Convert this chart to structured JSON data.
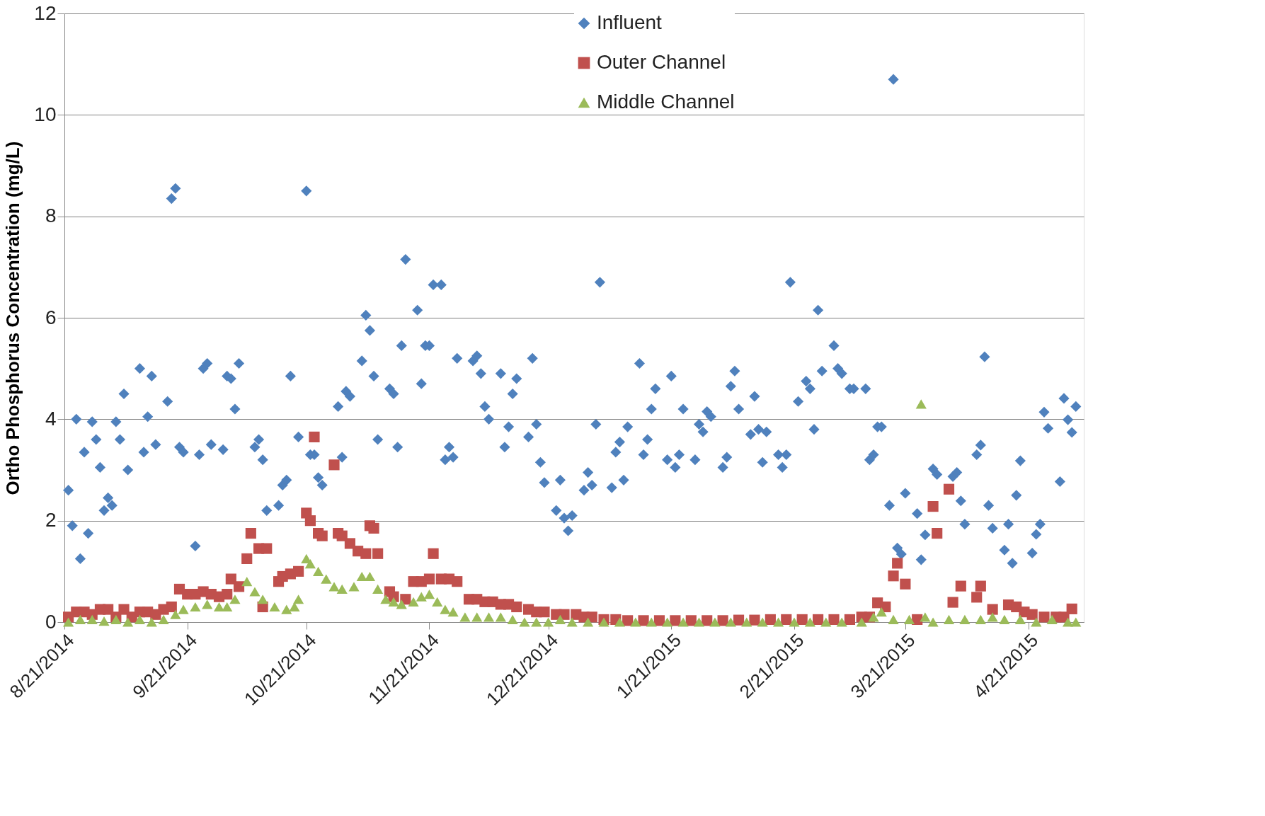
{
  "chart_data": {
    "type": "scatter",
    "ylabel": "Ortho Phosphorus Concentration (mg/L)",
    "xlim": [
      "2014-08-21",
      "2015-05-05"
    ],
    "ylim": [
      0,
      12
    ],
    "yticks": [
      0,
      2,
      4,
      6,
      8,
      10,
      12
    ],
    "xticks": [
      {
        "value": "2014-08-21",
        "label": "8/21/2014"
      },
      {
        "value": "2014-09-21",
        "label": "9/21/2014"
      },
      {
        "value": "2014-10-21",
        "label": "10/21/2014"
      },
      {
        "value": "2014-11-21",
        "label": "11/21/2014"
      },
      {
        "value": "2014-12-21",
        "label": "12/21/2014"
      },
      {
        "value": "2015-01-21",
        "label": "1/21/2015"
      },
      {
        "value": "2015-02-21",
        "label": "2/21/2015"
      },
      {
        "value": "2015-03-21",
        "label": "3/21/2015"
      },
      {
        "value": "2015-04-21",
        "label": "4/21/2015"
      }
    ],
    "grid": "y",
    "legend": "top",
    "series": [
      {
        "name": "Influent",
        "color": "#4f81bd",
        "marker": "diamond",
        "x": [
          "2014-08-22",
          "2014-08-23",
          "2014-08-24",
          "2014-08-25",
          "2014-08-26",
          "2014-08-27",
          "2014-08-28",
          "2014-08-29",
          "2014-08-30",
          "2014-08-31",
          "2014-09-01",
          "2014-09-02",
          "2014-09-03",
          "2014-09-04",
          "2014-09-05",
          "2014-09-06",
          "2014-09-09",
          "2014-09-10",
          "2014-09-11",
          "2014-09-12",
          "2014-09-13",
          "2014-09-16",
          "2014-09-17",
          "2014-09-18",
          "2014-09-19",
          "2014-09-20",
          "2014-09-23",
          "2014-09-24",
          "2014-09-25",
          "2014-09-26",
          "2014-09-27",
          "2014-09-30",
          "2014-10-01",
          "2014-10-02",
          "2014-10-03",
          "2014-10-04",
          "2014-10-08",
          "2014-10-09",
          "2014-10-10",
          "2014-10-11",
          "2014-10-14",
          "2014-10-15",
          "2014-10-16",
          "2014-10-17",
          "2014-10-19",
          "2014-10-21",
          "2014-10-22",
          "2014-10-23",
          "2014-10-24",
          "2014-10-25",
          "2014-10-29",
          "2014-10-30",
          "2014-10-31",
          "2014-11-01",
          "2014-11-04",
          "2014-11-05",
          "2014-11-06",
          "2014-11-07",
          "2014-11-08",
          "2014-11-11",
          "2014-11-12",
          "2014-11-13",
          "2014-11-14",
          "2014-11-15",
          "2014-11-18",
          "2014-11-19",
          "2014-11-20",
          "2014-11-21",
          "2014-11-22",
          "2014-11-24",
          "2014-11-25",
          "2014-11-26",
          "2014-11-27",
          "2014-11-28",
          "2014-12-02",
          "2014-12-03",
          "2014-12-04",
          "2014-12-05",
          "2014-12-06",
          "2014-12-09",
          "2014-12-10",
          "2014-12-11",
          "2014-12-12",
          "2014-12-13",
          "2014-12-16",
          "2014-12-17",
          "2014-12-18",
          "2014-12-19",
          "2014-12-20",
          "2014-12-23",
          "2014-12-24",
          "2014-12-25",
          "2014-12-26",
          "2014-12-27",
          "2014-12-30",
          "2014-12-31",
          "2015-01-01",
          "2015-01-02",
          "2015-01-03",
          "2015-01-06",
          "2015-01-07",
          "2015-01-08",
          "2015-01-09",
          "2015-01-10",
          "2015-01-13",
          "2015-01-14",
          "2015-01-15",
          "2015-01-16",
          "2015-01-17",
          "2015-01-20",
          "2015-01-21",
          "2015-01-22",
          "2015-01-23",
          "2015-01-24",
          "2015-01-27",
          "2015-01-28",
          "2015-01-29",
          "2015-01-30",
          "2015-01-31",
          "2015-02-03",
          "2015-02-04",
          "2015-02-05",
          "2015-02-06",
          "2015-02-07",
          "2015-02-10",
          "2015-02-11",
          "2015-02-12",
          "2015-02-13",
          "2015-02-14",
          "2015-02-17",
          "2015-02-18",
          "2015-02-19",
          "2015-02-20",
          "2015-02-22",
          "2015-02-24",
          "2015-02-25",
          "2015-02-26",
          "2015-02-27",
          "2015-02-28",
          "2015-03-03",
          "2015-03-04",
          "2015-03-05",
          "2015-03-07",
          "2015-03-08",
          "2015-03-11",
          "2015-03-12",
          "2015-03-13",
          "2015-03-14",
          "2015-03-15",
          "2015-03-17",
          "2015-03-18",
          "2015-03-19",
          "2015-03-20",
          "2015-03-21",
          "2015-03-24",
          "2015-03-25",
          "2015-03-26",
          "2015-03-28",
          "2015-03-29",
          "2015-04-02",
          "2015-04-03",
          "2015-04-04",
          "2015-04-05",
          "2015-04-08",
          "2015-04-09",
          "2015-04-10",
          "2015-04-11",
          "2015-04-12",
          "2015-04-15",
          "2015-04-16",
          "2015-04-17",
          "2015-04-18",
          "2015-04-19",
          "2015-04-22",
          "2015-04-23",
          "2015-04-24",
          "2015-04-25",
          "2015-04-26",
          "2015-04-29",
          "2015-04-30",
          "2015-05-01",
          "2015-05-02",
          "2015-05-03"
        ],
        "values": [
          2.6,
          1.9,
          4.0,
          1.25,
          3.35,
          1.75,
          3.95,
          3.6,
          3.05,
          2.2,
          2.45,
          2.3,
          3.95,
          3.6,
          4.5,
          3.0,
          5.0,
          3.35,
          4.05,
          4.85,
          3.5,
          4.35,
          8.35,
          8.55,
          3.45,
          3.35,
          1.5,
          3.3,
          5.0,
          5.1,
          3.5,
          3.4,
          4.85,
          4.8,
          4.2,
          5.1,
          3.45,
          3.6,
          3.2,
          2.2,
          2.3,
          2.7,
          2.8,
          4.85,
          3.65,
          8.5,
          3.3,
          3.3,
          2.85,
          2.7,
          4.25,
          3.25,
          4.55,
          4.45,
          5.15,
          6.05,
          5.75,
          4.85,
          3.6,
          4.6,
          4.5,
          3.45,
          5.45,
          7.15,
          6.15,
          4.7,
          5.45,
          5.45,
          6.65,
          6.65,
          3.2,
          3.45,
          3.25,
          5.2,
          5.15,
          5.25,
          4.9,
          4.25,
          4.0,
          4.9,
          3.45,
          3.85,
          4.5,
          4.8,
          3.65,
          5.2,
          3.9,
          3.15,
          2.75,
          2.2,
          2.8,
          2.05,
          1.8,
          2.1,
          2.6,
          2.95,
          2.7,
          3.9,
          6.7,
          2.65,
          3.35,
          3.55,
          2.8,
          3.85,
          5.1,
          3.3,
          3.6,
          4.2,
          4.6,
          3.2,
          4.85,
          3.05,
          3.3,
          4.2,
          3.2,
          3.9,
          3.75,
          4.15,
          4.05,
          3.05,
          3.25,
          4.65,
          4.95,
          4.2,
          3.7,
          4.45,
          3.8,
          3.15,
          3.75,
          3.3,
          3.05,
          3.3,
          6.7,
          4.35,
          4.75,
          4.6,
          3.8,
          6.15,
          4.95,
          5.45,
          5.0,
          4.9,
          4.6,
          4.6,
          4.6,
          3.2,
          3.3,
          3.85,
          3.85,
          2.3,
          10.7,
          1.46,
          1.34,
          2.54,
          2.14,
          1.23,
          1.72,
          3.02,
          2.91,
          2.87,
          2.95,
          2.39,
          1.93,
          3.3,
          3.49,
          5.23,
          2.3,
          1.85,
          1.42,
          1.93,
          1.16,
          2.5,
          3.18,
          1.36,
          1.73,
          1.93,
          4.14,
          3.82,
          2.77,
          4.41,
          3.99,
          3.74,
          4.25
        ]
      },
      {
        "name": "Outer Channel",
        "color": "#c0504d",
        "marker": "square",
        "x": [
          "2014-08-22",
          "2014-08-24",
          "2014-08-26",
          "2014-08-28",
          "2014-08-30",
          "2014-09-01",
          "2014-09-03",
          "2014-09-05",
          "2014-09-07",
          "2014-09-09",
          "2014-09-11",
          "2014-09-13",
          "2014-09-15",
          "2014-09-17",
          "2014-09-19",
          "2014-09-21",
          "2014-09-23",
          "2014-09-25",
          "2014-09-27",
          "2014-09-29",
          "2014-10-01",
          "2014-10-02",
          "2014-10-04",
          "2014-10-06",
          "2014-10-07",
          "2014-10-09",
          "2014-10-10",
          "2014-10-11",
          "2014-10-14",
          "2014-10-15",
          "2014-10-17",
          "2014-10-19",
          "2014-10-21",
          "2014-10-22",
          "2014-10-23",
          "2014-10-24",
          "2014-10-25",
          "2014-10-28",
          "2014-10-29",
          "2014-10-30",
          "2014-11-01",
          "2014-11-03",
          "2014-11-05",
          "2014-11-06",
          "2014-11-07",
          "2014-11-08",
          "2014-11-11",
          "2014-11-12",
          "2014-11-15",
          "2014-11-17",
          "2014-11-19",
          "2014-11-21",
          "2014-11-22",
          "2014-11-24",
          "2014-11-26",
          "2014-11-28",
          "2014-12-01",
          "2014-12-03",
          "2014-12-05",
          "2014-12-07",
          "2014-12-09",
          "2014-12-11",
          "2014-12-13",
          "2014-12-16",
          "2014-12-18",
          "2014-12-20",
          "2014-12-23",
          "2014-12-25",
          "2014-12-28",
          "2014-12-30",
          "2015-01-01",
          "2015-01-04",
          "2015-01-07",
          "2015-01-10",
          "2015-01-14",
          "2015-01-18",
          "2015-01-22",
          "2015-01-26",
          "2015-01-30",
          "2015-02-03",
          "2015-02-07",
          "2015-02-11",
          "2015-02-15",
          "2015-02-19",
          "2015-02-23",
          "2015-02-27",
          "2015-03-03",
          "2015-03-07",
          "2015-03-10",
          "2015-03-12",
          "2015-03-14",
          "2015-03-16",
          "2015-03-18",
          "2015-03-19",
          "2015-03-21",
          "2015-03-24",
          "2015-03-28",
          "2015-03-29",
          "2015-04-01",
          "2015-04-02",
          "2015-04-04",
          "2015-04-08",
          "2015-04-09",
          "2015-04-12",
          "2015-04-16",
          "2015-04-18",
          "2015-04-20",
          "2015-04-22",
          "2015-04-25",
          "2015-04-28",
          "2015-04-30",
          "2015-05-02"
        ],
        "values": [
          0.1,
          0.2,
          0.2,
          0.15,
          0.25,
          0.25,
          0.1,
          0.25,
          0.1,
          0.2,
          0.2,
          0.15,
          0.25,
          0.3,
          0.65,
          0.55,
          0.55,
          0.6,
          0.55,
          0.5,
          0.55,
          0.85,
          0.7,
          1.25,
          1.75,
          1.45,
          0.3,
          1.45,
          0.8,
          0.9,
          0.95,
          1.0,
          2.15,
          2.0,
          3.65,
          1.75,
          1.7,
          3.1,
          1.75,
          1.7,
          1.55,
          1.4,
          1.35,
          1.9,
          1.85,
          1.35,
          0.6,
          0.5,
          0.45,
          0.8,
          0.8,
          0.85,
          1.35,
          0.85,
          0.85,
          0.8,
          0.45,
          0.45,
          0.4,
          0.4,
          0.35,
          0.35,
          0.3,
          0.25,
          0.2,
          0.2,
          0.15,
          0.15,
          0.15,
          0.1,
          0.1,
          0.05,
          0.05,
          0.03,
          0.03,
          0.03,
          0.03,
          0.03,
          0.03,
          0.03,
          0.04,
          0.04,
          0.05,
          0.05,
          0.05,
          0.05,
          0.05,
          0.05,
          0.1,
          0.1,
          0.38,
          0.3,
          0.91,
          1.16,
          0.75,
          0.05,
          2.28,
          1.75,
          2.62,
          0.39,
          0.71,
          0.49,
          0.71,
          0.25,
          0.34,
          0.3,
          0.2,
          0.15,
          0.1,
          0.1,
          0.1,
          0.26
        ]
      },
      {
        "name": "Middle Channel",
        "color": "#9bbb59",
        "marker": "triangle",
        "x": [
          "2014-08-22",
          "2014-08-25",
          "2014-08-28",
          "2014-08-31",
          "2014-09-03",
          "2014-09-06",
          "2014-09-09",
          "2014-09-12",
          "2014-09-15",
          "2014-09-18",
          "2014-09-20",
          "2014-09-23",
          "2014-09-26",
          "2014-09-29",
          "2014-10-01",
          "2014-10-03",
          "2014-10-06",
          "2014-10-08",
          "2014-10-10",
          "2014-10-13",
          "2014-10-16",
          "2014-10-18",
          "2014-10-19",
          "2014-10-21",
          "2014-10-22",
          "2014-10-24",
          "2014-10-26",
          "2014-10-28",
          "2014-10-30",
          "2014-11-02",
          "2014-11-04",
          "2014-11-06",
          "2014-11-08",
          "2014-11-10",
          "2014-11-12",
          "2014-11-14",
          "2014-11-17",
          "2014-11-19",
          "2014-11-21",
          "2014-11-23",
          "2014-11-25",
          "2014-11-27",
          "2014-11-30",
          "2014-12-03",
          "2014-12-06",
          "2014-12-09",
          "2014-12-12",
          "2014-12-15",
          "2014-12-18",
          "2014-12-21",
          "2014-12-24",
          "2014-12-27",
          "2014-12-31",
          "2015-01-04",
          "2015-01-08",
          "2015-01-12",
          "2015-01-16",
          "2015-01-20",
          "2015-01-24",
          "2015-01-28",
          "2015-02-01",
          "2015-02-05",
          "2015-02-09",
          "2015-02-13",
          "2015-02-17",
          "2015-02-21",
          "2015-02-25",
          "2015-03-01",
          "2015-03-05",
          "2015-03-10",
          "2015-03-13",
          "2015-03-15",
          "2015-03-18",
          "2015-03-22",
          "2015-03-25",
          "2015-03-26",
          "2015-03-28",
          "2015-04-01",
          "2015-04-05",
          "2015-04-09",
          "2015-04-12",
          "2015-04-15",
          "2015-04-19",
          "2015-04-23",
          "2015-04-27",
          "2015-05-01",
          "2015-05-03"
        ],
        "values": [
          0.0,
          0.05,
          0.05,
          0.02,
          0.05,
          0.0,
          0.05,
          0.0,
          0.05,
          0.15,
          0.25,
          0.3,
          0.35,
          0.3,
          0.3,
          0.45,
          0.8,
          0.6,
          0.45,
          0.3,
          0.25,
          0.3,
          0.45,
          1.25,
          1.15,
          1.0,
          0.85,
          0.7,
          0.65,
          0.7,
          0.9,
          0.9,
          0.65,
          0.45,
          0.4,
          0.35,
          0.4,
          0.5,
          0.55,
          0.4,
          0.25,
          0.2,
          0.1,
          0.1,
          0.1,
          0.1,
          0.05,
          0.0,
          0.0,
          0.0,
          0.05,
          0.0,
          0.0,
          0.0,
          0.0,
          0.0,
          0.0,
          0.0,
          0.0,
          0.0,
          0.0,
          0.0,
          0.0,
          0.0,
          0.0,
          0.0,
          0.0,
          0.0,
          0.0,
          0.0,
          0.1,
          0.2,
          0.05,
          0.05,
          4.3,
          0.1,
          0.0,
          0.05,
          0.05,
          0.05,
          0.1,
          0.05,
          0.05,
          0.0,
          0.05,
          0.0,
          0.0
        ]
      }
    ]
  }
}
